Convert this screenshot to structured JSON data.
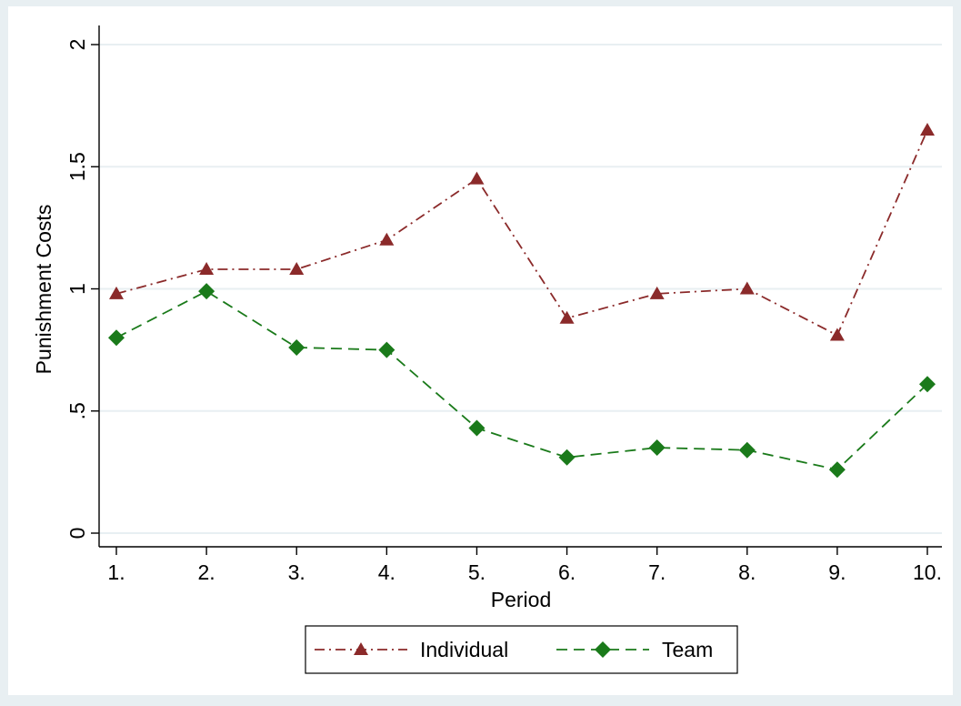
{
  "chart_data": {
    "type": "line",
    "title": "",
    "xlabel": "Period",
    "ylabel": "Punishment Costs",
    "categories": [
      "1.",
      "2.",
      "3.",
      "4.",
      "5.",
      "6.",
      "7.",
      "8.",
      "9.",
      "10."
    ],
    "xlim": [
      1,
      10
    ],
    "ylim": [
      0,
      2
    ],
    "yticks": [
      {
        "value": 0,
        "label": "0"
      },
      {
        "value": 0.5,
        "label": ".5"
      },
      {
        "value": 1,
        "label": "1"
      },
      {
        "value": 1.5,
        "label": "1.5"
      },
      {
        "value": 2,
        "label": "2"
      }
    ],
    "grid": true,
    "legend_position": "bottom",
    "series": [
      {
        "name": "Individual",
        "values": [
          0.98,
          1.08,
          1.08,
          1.2,
          1.45,
          0.88,
          0.98,
          1.0,
          0.81,
          1.65
        ],
        "color": "#8b2a2a",
        "marker": "triangle",
        "line_style": "dash-dot"
      },
      {
        "name": "Team",
        "values": [
          0.8,
          0.99,
          0.76,
          0.75,
          0.43,
          0.31,
          0.35,
          0.34,
          0.26,
          0.61
        ],
        "color": "#1a7a1a",
        "marker": "diamond",
        "line_style": "dash"
      }
    ]
  },
  "colors": {
    "page_background": "#e8eff2",
    "plot_background": "#ffffff",
    "gridline": "#e8eff2",
    "axis": "#000000"
  }
}
